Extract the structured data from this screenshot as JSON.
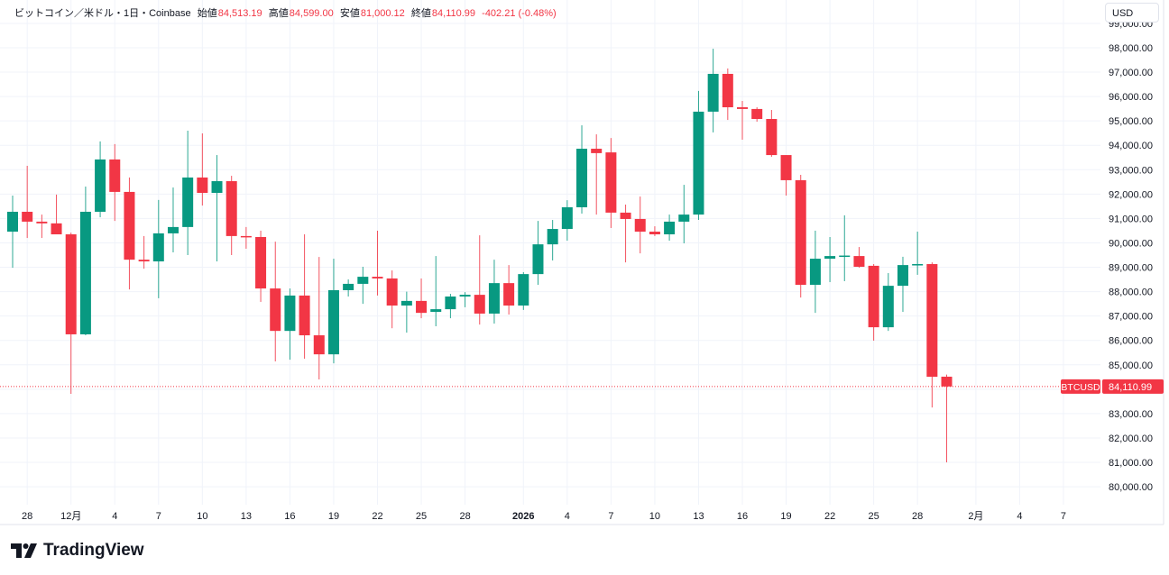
{
  "legend": {
    "symbol": "ビットコイン／米ドル・1日・Coinbase",
    "open_label": "始値",
    "open": "84,513.19",
    "high_label": "高値",
    "high": "84,599.00",
    "low_label": "安値",
    "low": "81,000.12",
    "close_label": "終値",
    "close": "84,110.99",
    "change": "-402.21 (-0.48%)"
  },
  "currency_button": "USD",
  "price_tag": {
    "symbol": "BTCUSD",
    "price": "84,110.99",
    "value": 84110.99
  },
  "brand": "TradingView",
  "colors": {
    "up": "#089981",
    "down": "#f23645",
    "grid": "#f0f3fa",
    "text": "#131722"
  },
  "chart_data": {
    "type": "candlestick",
    "title": "ビットコイン／米ドル・1日・Coinbase",
    "ylim": [
      79500,
      99000
    ],
    "yticks": [
      80000,
      81000,
      82000,
      83000,
      84000,
      85000,
      86000,
      87000,
      88000,
      89000,
      90000,
      91000,
      92000,
      93000,
      94000,
      95000,
      96000,
      97000,
      98000,
      99000
    ],
    "ytick_labels": [
      "80,000.00",
      "81,000.00",
      "82,000.00",
      "83,000.00",
      "",
      "85,000.00",
      "86,000.00",
      "87,000.00",
      "88,000.00",
      "89,000.00",
      "90,000.00",
      "91,000.00",
      "92,000.00",
      "93,000.00",
      "94,000.00",
      "95,000.00",
      "96,000.00",
      "97,000.00",
      "98,000.00",
      "99,000.00"
    ],
    "xticks": [
      {
        "day": 1,
        "label": "28"
      },
      {
        "day": 4,
        "label": "12月"
      },
      {
        "day": 7,
        "label": "4"
      },
      {
        "day": 10,
        "label": "7"
      },
      {
        "day": 13,
        "label": "10"
      },
      {
        "day": 16,
        "label": "13"
      },
      {
        "day": 19,
        "label": "16"
      },
      {
        "day": 22,
        "label": "19"
      },
      {
        "day": 25,
        "label": "22"
      },
      {
        "day": 28,
        "label": "25"
      },
      {
        "day": 31,
        "label": "28"
      },
      {
        "day": 35,
        "label": "2026",
        "bold": true
      },
      {
        "day": 38,
        "label": "4"
      },
      {
        "day": 41,
        "label": "7"
      },
      {
        "day": 44,
        "label": "10"
      },
      {
        "day": 47,
        "label": "13"
      },
      {
        "day": 50,
        "label": "16"
      },
      {
        "day": 53,
        "label": "19"
      },
      {
        "day": 56,
        "label": "22"
      },
      {
        "day": 59,
        "label": "25"
      },
      {
        "day": 62,
        "label": "28"
      },
      {
        "day": 66,
        "label": "2月"
      },
      {
        "day": 69,
        "label": "4"
      },
      {
        "day": 72,
        "label": "7"
      }
    ],
    "ohlc": [
      [
        90460,
        91940,
        88980,
        91275
      ],
      [
        91275,
        93160,
        90200,
        90870
      ],
      [
        90870,
        91160,
        90200,
        90800
      ],
      [
        90800,
        91980,
        90350,
        90350
      ],
      [
        90350,
        90420,
        83810,
        86250
      ],
      [
        86250,
        92310,
        86210,
        91275
      ],
      [
        91275,
        94160,
        91050,
        93420
      ],
      [
        93420,
        94050,
        90900,
        92090
      ],
      [
        92090,
        92680,
        88090,
        89310
      ],
      [
        89310,
        90280,
        88940,
        89240
      ],
      [
        89240,
        91760,
        87730,
        90390
      ],
      [
        90390,
        92270,
        89610,
        90650
      ],
      [
        90650,
        94600,
        89500,
        92680
      ],
      [
        92680,
        94490,
        91530,
        92050
      ],
      [
        92050,
        93600,
        89240,
        92530
      ],
      [
        92530,
        92750,
        89500,
        90280
      ],
      [
        90280,
        90650,
        89760,
        90240
      ],
      [
        90240,
        90500,
        87580,
        88130
      ],
      [
        88130,
        90050,
        85140,
        86390
      ],
      [
        86390,
        88130,
        85210,
        87840
      ],
      [
        87840,
        90350,
        85250,
        86210
      ],
      [
        86210,
        89420,
        84400,
        85430
      ],
      [
        85430,
        89350,
        85060,
        88060
      ],
      [
        88060,
        88500,
        87800,
        88320
      ],
      [
        88320,
        89020,
        87500,
        88610
      ],
      [
        88610,
        90500,
        87840,
        88540
      ],
      [
        88540,
        88870,
        86500,
        87430
      ],
      [
        87430,
        88000,
        86320,
        87620
      ],
      [
        87620,
        88540,
        86910,
        87130
      ],
      [
        87170,
        89460,
        86580,
        87280
      ],
      [
        87280,
        87910,
        86910,
        87800
      ],
      [
        87800,
        87980,
        87360,
        87870
      ],
      [
        87870,
        90310,
        86650,
        87100
      ],
      [
        87100,
        89310,
        86690,
        88350
      ],
      [
        88350,
        89090,
        87060,
        87430
      ],
      [
        87430,
        88800,
        87250,
        88720
      ],
      [
        88720,
        90900,
        88280,
        89940
      ],
      [
        89940,
        90940,
        89280,
        90570
      ],
      [
        90570,
        91750,
        90090,
        91460
      ],
      [
        91460,
        94820,
        91200,
        93860
      ],
      [
        93860,
        94450,
        91160,
        93680
      ],
      [
        93710,
        94300,
        90610,
        91240
      ],
      [
        91240,
        91570,
        89200,
        90980
      ],
      [
        90980,
        91900,
        89570,
        90460
      ],
      [
        90460,
        90680,
        90280,
        90350
      ],
      [
        90350,
        91160,
        90090,
        90870
      ],
      [
        90870,
        92380,
        89980,
        91160
      ],
      [
        91160,
        96230,
        90940,
        95380
      ],
      [
        95380,
        97960,
        94530,
        96930
      ],
      [
        96930,
        97150,
        95040,
        95560
      ],
      [
        95560,
        95820,
        94230,
        95490
      ],
      [
        95490,
        95560,
        94970,
        95080
      ],
      [
        95080,
        95450,
        93530,
        93600
      ],
      [
        93600,
        93600,
        91940,
        92570
      ],
      [
        92570,
        92790,
        87760,
        88280
      ],
      [
        88280,
        90500,
        87130,
        89350
      ],
      [
        89350,
        90240,
        88390,
        89460
      ],
      [
        89460,
        91130,
        88430,
        89480
      ],
      [
        89460,
        89830,
        88980,
        89020
      ],
      [
        89060,
        89130,
        85990,
        86540
      ],
      [
        86540,
        88760,
        86390,
        88240
      ],
      [
        88240,
        89430,
        87170,
        89090
      ],
      [
        89090,
        90460,
        88690,
        89130
      ],
      [
        89130,
        89200,
        83250,
        84510
      ],
      [
        84513.19,
        84599,
        81000.12,
        84110.99
      ]
    ]
  }
}
